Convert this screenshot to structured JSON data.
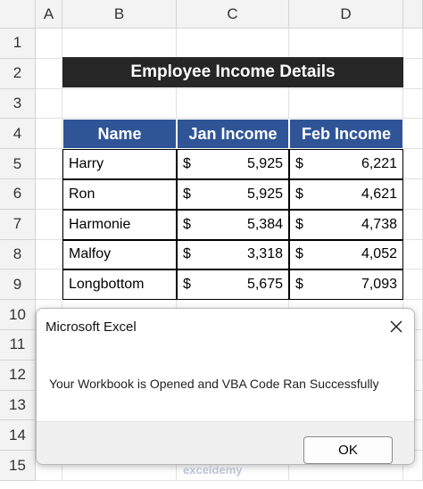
{
  "sheet": {
    "column_headers": [
      "A",
      "B",
      "C",
      "D"
    ],
    "row_headers": [
      "1",
      "2",
      "3",
      "4",
      "5",
      "6",
      "7",
      "8",
      "9",
      "10",
      "11",
      "12",
      "13",
      "14",
      "15"
    ],
    "title": "Employee Income Details",
    "table": {
      "header": [
        "Name",
        "Jan Income",
        "Feb Income"
      ],
      "currency": "$",
      "rows": [
        [
          "Harry",
          "5,925",
          "6,221"
        ],
        [
          "Ron",
          "5,925",
          "4,621"
        ],
        [
          "Harmonie",
          "5,384",
          "4,738"
        ],
        [
          "Malfoy",
          "3,318",
          "4,052"
        ],
        [
          "Longbottom",
          "5,675",
          "7,093"
        ]
      ]
    },
    "watermark": "exceldemy"
  },
  "dialog": {
    "title": "Microsoft Excel",
    "message": "Your Workbook is Opened and VBA Code Ran Successfully",
    "button": "OK"
  }
}
